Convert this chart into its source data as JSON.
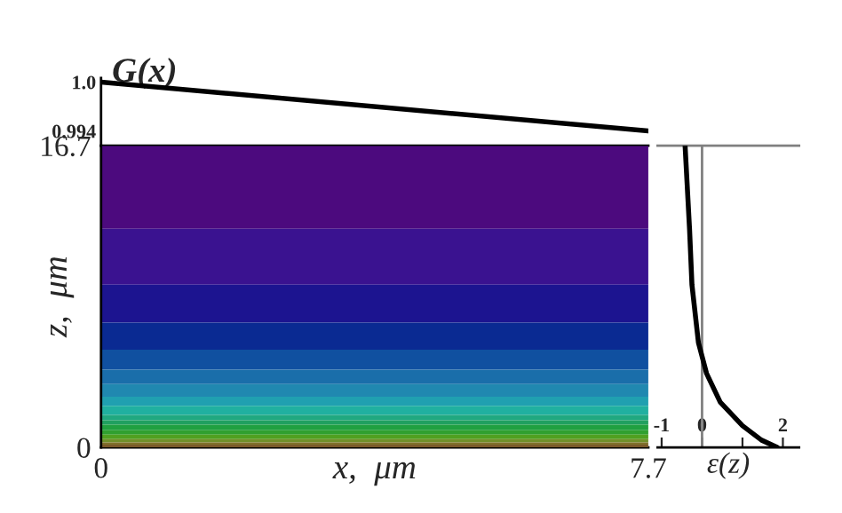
{
  "chart_data": [
    {
      "type": "line",
      "ylabel": "G(x)",
      "xlim": [
        0,
        7.7
      ],
      "ylim": [
        0.9922,
        1.0005
      ],
      "yticks": [
        {
          "value": 1.0,
          "label": "1.0"
        },
        0.994
      ],
      "tick_labels": "y",
      "grid": false,
      "series": [
        {
          "color": "#000000",
          "x": [
            0,
            7.7
          ],
          "values": [
            1.0,
            0.994
          ]
        }
      ]
    },
    {
      "type": "line",
      "xlabel": "x,  μm",
      "ylabel": "z,  μm",
      "xlim": [
        0,
        7.7
      ],
      "xticks": [
        0,
        7.7
      ],
      "ylim": [
        0,
        16.7
      ],
      "yticks": [
        0,
        16.7
      ],
      "grid": false,
      "bands": [
        {
          "axis": "y",
          "from": 12.1,
          "to": 16.7,
          "color": "#4c0a7e"
        },
        {
          "axis": "y",
          "from": 9.0,
          "to": 12.1,
          "color": "#3a1290"
        },
        {
          "axis": "y",
          "from": 6.9,
          "to": 9.0,
          "color": "#1c1490"
        },
        {
          "axis": "y",
          "from": 5.4,
          "to": 6.9,
          "color": "#0a2a92"
        },
        {
          "axis": "y",
          "from": 4.3,
          "to": 5.4,
          "color": "#1050a0"
        },
        {
          "axis": "y",
          "from": 3.5,
          "to": 4.3,
          "color": "#1a6eaa"
        },
        {
          "axis": "y",
          "from": 2.8,
          "to": 3.5,
          "color": "#2088b0"
        },
        {
          "axis": "y",
          "from": 2.3,
          "to": 2.8,
          "color": "#20a0b0"
        },
        {
          "axis": "y",
          "from": 1.8,
          "to": 2.3,
          "color": "#20b0a0"
        },
        {
          "axis": "y",
          "from": 1.5,
          "to": 1.8,
          "color": "#20a880"
        },
        {
          "axis": "y",
          "from": 1.25,
          "to": 1.5,
          "color": "#20a060"
        },
        {
          "axis": "y",
          "from": 0.95,
          "to": 1.25,
          "color": "#20a040"
        },
        {
          "axis": "y",
          "from": 0.7,
          "to": 0.95,
          "color": "#30a030"
        },
        {
          "axis": "y",
          "from": 0.45,
          "to": 0.7,
          "color": "#50a020"
        },
        {
          "axis": "y",
          "from": 0.27,
          "to": 0.45,
          "color": "#70902a"
        },
        {
          "axis": "y",
          "from": 0.15,
          "to": 0.27,
          "color": "#80702a"
        },
        {
          "axis": "y",
          "from": 0,
          "to": 0.15,
          "color": "#7a5a2a"
        }
      ]
    },
    {
      "type": "line",
      "xlabel": "ε(z)",
      "xlim": [
        -1.1,
        2.4
      ],
      "xticks": [
        {
          "value": -1,
          "label": "-1"
        },
        0,
        {
          "value": 1,
          "label": null
        },
        2
      ],
      "ylim": [
        0,
        16.7
      ],
      "tick_labels": "x",
      "grid": false,
      "ref_lines": [
        {
          "axis": "x",
          "value": 0,
          "color": "#808080"
        }
      ],
      "series": [
        {
          "color": "#000000",
          "x": [
            -0.42,
            -0.31,
            -0.25,
            -0.09,
            0.11,
            0.45,
            1.0,
            1.47,
            1.86
          ],
          "values": [
            16.7,
            12.1,
            9.0,
            5.8,
            4.1,
            2.5,
            1.2,
            0.4,
            0
          ]
        }
      ]
    }
  ]
}
